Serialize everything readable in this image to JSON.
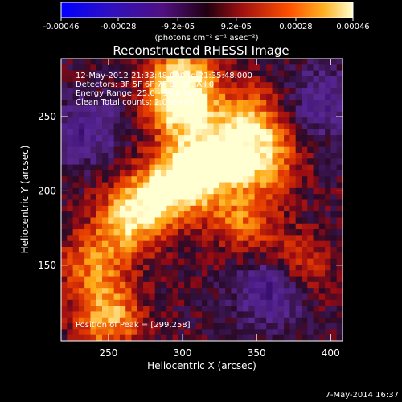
{
  "colorbar": {
    "tick_labels": [
      "-0.00046",
      "-0.00028",
      "-9.2e-05",
      "9.2e-05",
      "0.00028",
      "0.00046"
    ],
    "tick_values": [
      -0.00046,
      -0.00028,
      -9.2e-05,
      9.2e-05,
      0.00028,
      0.00046
    ],
    "range": [
      -0.00046,
      0.00046
    ],
    "units_label": "(photons cm⁻² s⁻¹ asec⁻²)"
  },
  "chart_data": {
    "type": "heatmap",
    "title": "Reconstructed RHESSI Image",
    "xlabel": "Heliocentric X (arcsec)",
    "ylabel": "Heliocentric Y (arcsec)",
    "xlim": [
      218,
      408
    ],
    "ylim": [
      99,
      289
    ],
    "xticks": [
      250,
      300,
      350,
      400
    ],
    "yticks": [
      150,
      200,
      250
    ],
    "annotations": [
      "12-May-2012 21:33:48.000 to 21:35:48.000",
      "Detectors: 3F 5F 6F 7F 8F 9F, All 0",
      "Energy Range: 25.0 - 50.0 keV",
      "Clean     Total counts: 2.09E+03"
    ],
    "peak_label": "Position of Peak = [299,258]",
    "peak": [
      299,
      258
    ],
    "sources": [
      {
        "x": 299,
        "y": 258,
        "amp": 1.0
      },
      {
        "x": 302,
        "y": 208,
        "amp": 0.95
      },
      {
        "x": 322,
        "y": 223,
        "amp": 0.85
      },
      {
        "x": 250,
        "y": 115,
        "amp": 0.75
      },
      {
        "x": 263,
        "y": 180,
        "amp": 0.7
      },
      {
        "x": 355,
        "y": 220,
        "amp": 0.75
      },
      {
        "x": 345,
        "y": 248,
        "amp": 0.65
      },
      {
        "x": 280,
        "y": 195,
        "amp": 0.65
      },
      {
        "x": 340,
        "y": 180,
        "amp": 0.55
      },
      {
        "x": 375,
        "y": 150,
        "amp": 0.5
      },
      {
        "x": 240,
        "y": 150,
        "amp": 0.55
      },
      {
        "x": 300,
        "y": 280,
        "amp": 0.6
      },
      {
        "x": 360,
        "y": 135,
        "amp": -0.7
      },
      {
        "x": 235,
        "y": 240,
        "amp": -0.5
      },
      {
        "x": 395,
        "y": 260,
        "amp": -0.45
      }
    ]
  },
  "footer": {
    "timestamp": "7-May-2014 16:37"
  }
}
